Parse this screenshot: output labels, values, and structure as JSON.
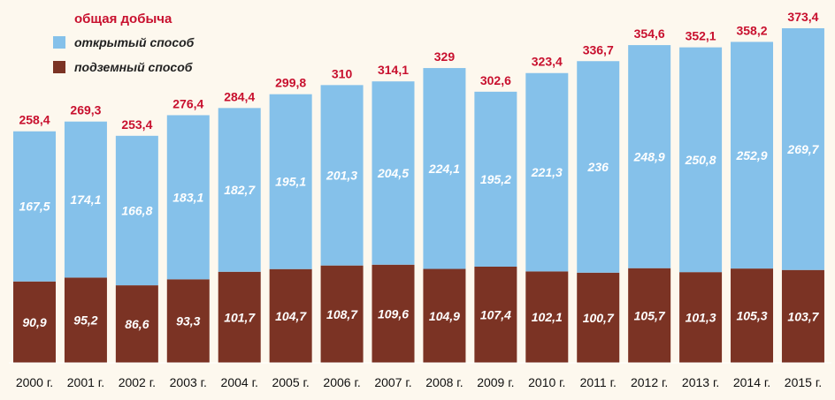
{
  "chart_data": {
    "type": "bar",
    "stacked": true,
    "categories": [
      "2000 г.",
      "2001 г.",
      "2002 г.",
      "2003 г.",
      "2004 г.",
      "2005 г.",
      "2006 г.",
      "2007 г.",
      "2008 г.",
      "2009 г.",
      "2010 г.",
      "2011 г.",
      "2012 г.",
      "2013 г.",
      "2014 г.",
      "2015 г."
    ],
    "series": [
      {
        "name": "подземный способ",
        "color": "#7b3324",
        "values": [
          90.9,
          95.2,
          86.6,
          93.3,
          101.7,
          104.7,
          108.7,
          109.6,
          104.9,
          107.4,
          102.1,
          100.7,
          105.7,
          101.3,
          105.3,
          103.7
        ],
        "labels": [
          "90,9",
          "95,2",
          "86,6",
          "93,3",
          "101,7",
          "104,7",
          "108,7",
          "109,6",
          "104,9",
          "107,4",
          "102,1",
          "100,7",
          "105,7",
          "101,3",
          "105,3",
          "103,7"
        ]
      },
      {
        "name": "открытый способ",
        "color": "#85c1ea",
        "values": [
          167.5,
          174.1,
          166.8,
          183.1,
          182.7,
          195.1,
          201.3,
          204.5,
          224.1,
          195.2,
          221.3,
          236,
          248.9,
          250.8,
          252.9,
          269.7
        ],
        "labels": [
          "167,5",
          "174,1",
          "166,8",
          "183,1",
          "182,7",
          "195,1",
          "201,3",
          "204,5",
          "224,1",
          "195,2",
          "221,3",
          "236",
          "248,9",
          "250,8",
          "252,9",
          "269,7"
        ]
      }
    ],
    "totals": {
      "name": "общая добыча",
      "color": "#c8102e",
      "values": [
        258.4,
        269.3,
        253.4,
        276.4,
        284.4,
        299.8,
        310,
        314.1,
        329,
        302.6,
        323.4,
        336.7,
        354.6,
        352.1,
        358.2,
        373.4
      ],
      "labels": [
        "258,4",
        "269,3",
        "253,4",
        "276,4",
        "284,4",
        "299,8",
        "310",
        "314,1",
        "329",
        "302,6",
        "323,4",
        "336,7",
        "354,6",
        "352,1",
        "358,2",
        "373,4"
      ]
    },
    "ylim": [
      0,
      373.4
    ],
    "legend_position": "top-left",
    "grid": false
  }
}
